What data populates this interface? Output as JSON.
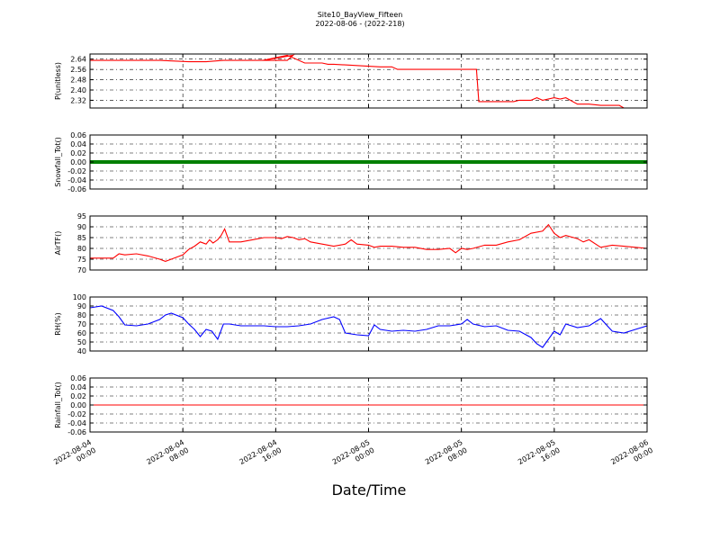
{
  "figure": {
    "title": "Site10_BayView_Fifteen",
    "subtitle": "2022-08-06 - (2022-218)",
    "xlabel": "Date/Time",
    "x_tick_labels": [
      [
        "2022-08-04",
        "00:00"
      ],
      [
        "2022-08-04",
        "08:00"
      ],
      [
        "2022-08-04",
        "16:00"
      ],
      [
        "2022-08-05",
        "00:00"
      ],
      [
        "2022-08-05",
        "08:00"
      ],
      [
        "2022-08-05",
        "16:00"
      ],
      [
        "2022-08-06",
        "00:00"
      ]
    ]
  },
  "chart_data": [
    {
      "type": "line",
      "ylabel": "P(unitless)",
      "ylim": [
        2.26,
        2.68
      ],
      "yticks": [
        2.32,
        2.4,
        2.48,
        2.56,
        2.64
      ],
      "tick_decimals": 2,
      "grid": true,
      "color": "#ff0000",
      "xlim_hours": [
        0,
        48
      ],
      "x": [
        0,
        3,
        5,
        6,
        8.5,
        10,
        11.5,
        12,
        15,
        17,
        17.5,
        14.9,
        17,
        18.5,
        20,
        20.5,
        21,
        25,
        26,
        26.5,
        28,
        30,
        32,
        33.3,
        33.5,
        34,
        36,
        36.5,
        37,
        38,
        38.5,
        39,
        40,
        40.5,
        41,
        42,
        43,
        44,
        45.6,
        46,
        48
      ],
      "y": [
        2.63,
        2.63,
        2.63,
        2.63,
        2.62,
        2.62,
        2.63,
        2.63,
        2.63,
        2.63,
        2.67,
        2.63,
        2.67,
        2.61,
        2.61,
        2.6,
        2.6,
        2.58,
        2.58,
        2.56,
        2.56,
        2.56,
        2.56,
        2.56,
        2.31,
        2.31,
        2.31,
        2.31,
        2.32,
        2.32,
        2.34,
        2.32,
        2.34,
        2.33,
        2.34,
        2.29,
        2.29,
        2.28,
        2.28,
        2.26,
        2.26
      ]
    },
    {
      "type": "line",
      "ylabel": "Snowfall_Tot()",
      "ylim": [
        -0.06,
        0.06
      ],
      "yticks": [
        -0.06,
        -0.04,
        -0.02,
        0.0,
        0.02,
        0.04,
        0.06
      ],
      "tick_decimals": 2,
      "grid": true,
      "color": "#008000",
      "line_width": 4,
      "xlim_hours": [
        0,
        48
      ],
      "x": [
        0,
        48
      ],
      "y": [
        0.0,
        0.0
      ]
    },
    {
      "type": "line",
      "ylabel": "AirTF()",
      "ylim": [
        70,
        95
      ],
      "yticks": [
        70,
        75,
        80,
        85,
        90,
        95
      ],
      "tick_decimals": 0,
      "grid": true,
      "color": "#ff0000",
      "xlim_hours": [
        0,
        48
      ],
      "x": [
        0,
        1,
        2,
        2.5,
        3,
        4,
        5,
        6,
        6.5,
        7,
        8,
        8.5,
        9,
        9.5,
        10,
        10.3,
        10.6,
        11,
        11.3,
        11.6,
        12,
        12.5,
        13,
        14,
        15,
        16,
        16.5,
        17,
        17.5,
        18,
        18.5,
        19,
        20,
        21,
        22,
        22.5,
        23,
        24,
        24.5,
        25,
        26,
        27,
        28,
        29,
        30,
        31,
        31.5,
        32,
        32.5,
        33,
        34,
        35,
        36,
        37,
        38,
        39,
        39.5,
        40,
        40.5,
        41,
        42,
        42.5,
        43,
        44,
        45,
        46,
        47,
        48
      ],
      "y": [
        75.5,
        75.5,
        75.5,
        77.5,
        77,
        77.5,
        76.5,
        75,
        74,
        75,
        77,
        79.5,
        81,
        83,
        82,
        84,
        82.5,
        84,
        86,
        89,
        83,
        83,
        83,
        84,
        85,
        85,
        84.5,
        85.5,
        85,
        84,
        84.5,
        83,
        82,
        81,
        82,
        84,
        82,
        81.5,
        80.5,
        81,
        81,
        80.5,
        80.5,
        79.5,
        79.5,
        80,
        78,
        80,
        79.5,
        80,
        81.5,
        81.5,
        83,
        84,
        87,
        88,
        91,
        87,
        85,
        86,
        84.5,
        83,
        84,
        80.5,
        81.5,
        81,
        80.5,
        80
      ]
    },
    {
      "type": "line",
      "ylabel": "RH(%)",
      "ylim": [
        40,
        100
      ],
      "yticks": [
        40,
        50,
        60,
        70,
        80,
        90,
        100
      ],
      "tick_decimals": 0,
      "grid": true,
      "color": "#0000ff",
      "xlim_hours": [
        0,
        48
      ],
      "x": [
        0,
        1,
        2,
        2.5,
        3,
        4,
        5,
        6,
        6.5,
        7,
        8,
        8.5,
        9,
        9.5,
        10,
        10.5,
        11,
        11.5,
        12,
        13,
        14,
        15,
        16,
        17,
        18,
        19,
        20,
        21,
        21.5,
        22,
        23,
        24,
        24.5,
        25,
        26,
        27,
        28,
        29,
        30,
        31,
        32,
        32.5,
        33,
        34,
        35,
        36,
        37,
        38,
        38.5,
        39,
        40,
        40.5,
        41,
        42,
        43,
        44,
        45,
        46,
        47,
        48
      ],
      "y": [
        88,
        90,
        85,
        78,
        69,
        68,
        70,
        75,
        80,
        82,
        77,
        70,
        64,
        56,
        64,
        62,
        53,
        70,
        70,
        68,
        68,
        68,
        67,
        67,
        68,
        70,
        75,
        78,
        75,
        60,
        58,
        57,
        69,
        64,
        62,
        63,
        62,
        64,
        68,
        68,
        70,
        75,
        70,
        67,
        68,
        63,
        62,
        55,
        48,
        44,
        62,
        58,
        70,
        66,
        68,
        76,
        62,
        60,
        64,
        68
      ]
    },
    {
      "type": "line",
      "ylabel": "Rainfall_Tot()",
      "ylim": [
        -0.06,
        0.06
      ],
      "yticks": [
        -0.06,
        -0.04,
        -0.02,
        0.0,
        0.02,
        0.04,
        0.06
      ],
      "tick_decimals": 2,
      "grid": true,
      "color": "#ff0000",
      "xlim_hours": [
        0,
        48
      ],
      "x": [
        0,
        48
      ],
      "y": [
        0.0,
        0.0
      ]
    }
  ]
}
